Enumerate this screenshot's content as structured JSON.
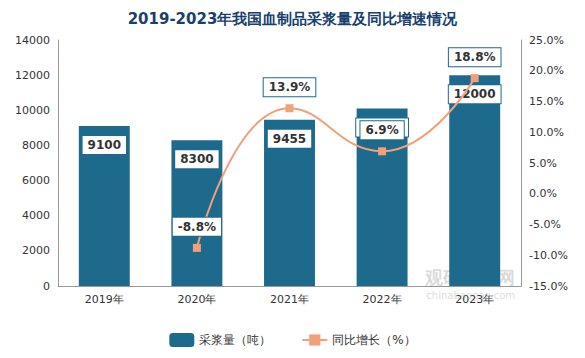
{
  "chart_data": {
    "type": "bar",
    "title": "2019-2023年我国血制品采浆量及同比增速情况",
    "categories": [
      "2019年",
      "2020年",
      "2021年",
      "2022年",
      "2023年"
    ],
    "series": [
      {
        "name": "采浆量（吨）",
        "type": "bar",
        "color": "#1d6a8c",
        "values": [
          9100,
          8300,
          9455,
          10104,
          12000
        ],
        "data_labels": true
      },
      {
        "name": "同比增长（%）",
        "type": "line",
        "axis": "y2",
        "color": "#f0a07a",
        "marker": "square",
        "line_style": "smooth",
        "values": [
          null,
          -8.8,
          13.9,
          6.9,
          18.8
        ],
        "value_labels": [
          null,
          "-8.8%",
          "13.9%",
          "6.9%",
          "18.8%"
        ],
        "data_labels": true
      }
    ],
    "ylim": [
      0,
      14000
    ],
    "yticks": [
      0,
      2000,
      4000,
      6000,
      8000,
      10000,
      12000,
      14000
    ],
    "y2lim": [
      -15,
      25
    ],
    "y2ticks": [
      {
        "value": -15,
        "label": "-15.0%"
      },
      {
        "value": -10,
        "label": "-10.0%"
      },
      {
        "value": -5,
        "label": "-5.0%"
      },
      {
        "value": 0,
        "label": "0.0%"
      },
      {
        "value": 5,
        "label": "5.0%"
      },
      {
        "value": 10,
        "label": "10.0%"
      },
      {
        "value": 15,
        "label": "15.0%"
      },
      {
        "value": 20,
        "label": "20.0%"
      },
      {
        "value": 25,
        "label": "25.0%"
      }
    ],
    "grid": false,
    "legend": "bottom",
    "annotations": [
      "观研报告网",
      "chinabaogao.com"
    ]
  }
}
